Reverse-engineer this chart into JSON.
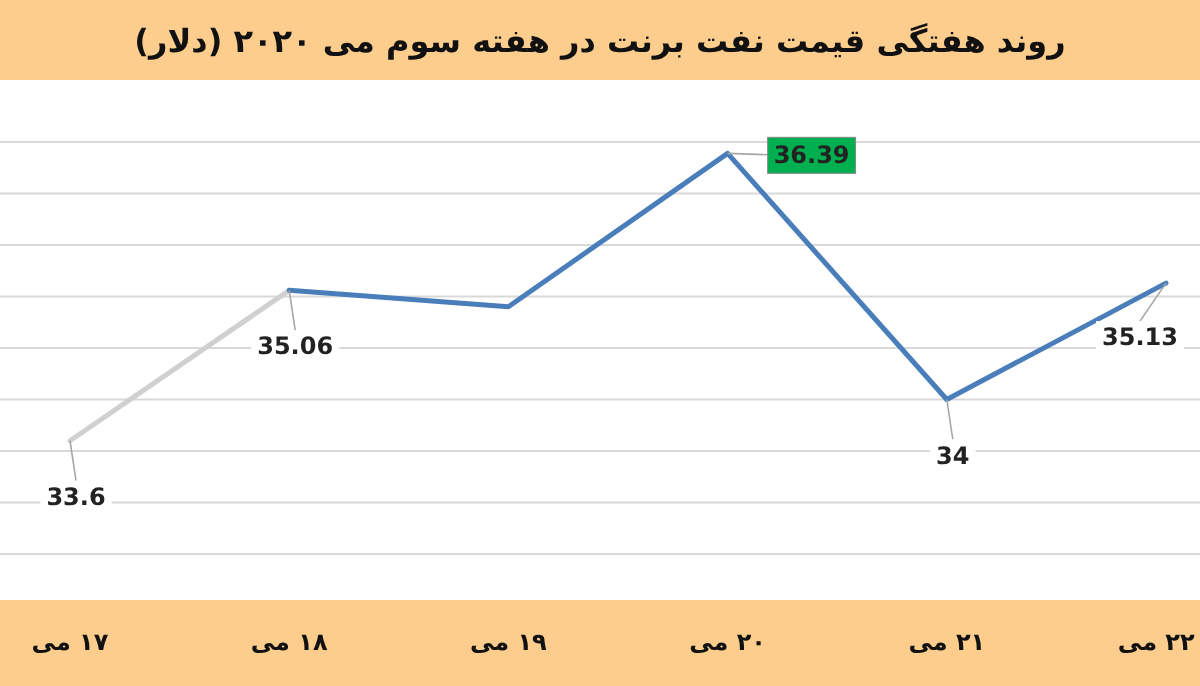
{
  "chart_data": {
    "type": "line",
    "title": "روند هفتگی قیمت نفت برنت در هفته سوم می ۲۰۲۰ (دلار)",
    "categories": [
      "۱۷ می",
      "۱۸ می",
      "۱۹ می",
      "۲۰ می",
      "۲۱ می",
      "۲۲ می"
    ],
    "series": [
      {
        "color": "#d0d0d0",
        "values": [
          33.6,
          35.06,
          null,
          null,
          null,
          null
        ],
        "value_labels": [
          "33.6",
          null,
          null,
          null,
          null,
          null
        ]
      },
      {
        "color": "#4a7ebb",
        "values": [
          null,
          35.06,
          34.9,
          36.39,
          34,
          35.13
        ],
        "value_labels": [
          null,
          "35.06",
          null,
          "36.39",
          "34",
          "35.13"
        ]
      }
    ],
    "yticks": [
      32.5,
      33,
      33.5,
      34,
      34.5,
      35,
      35.5,
      36,
      36.5
    ],
    "grid": "y",
    "tick_labels": "x"
  }
}
